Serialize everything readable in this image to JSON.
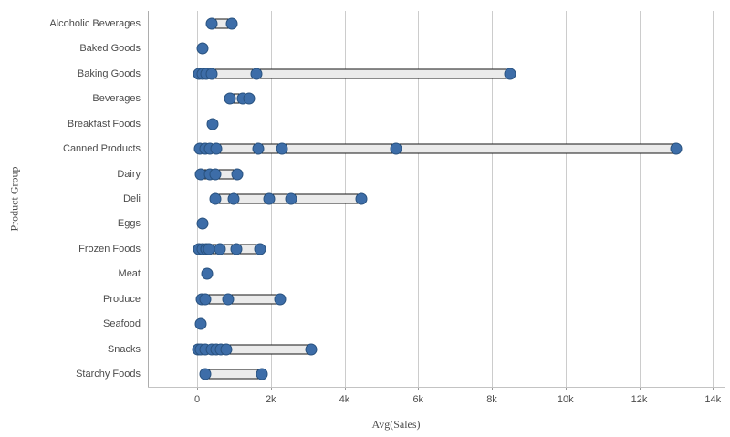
{
  "chart_data": {
    "type": "scatter",
    "subtype": "distribution-plot",
    "title": "",
    "xlabel": "Avg(Sales)",
    "ylabel": "Product Group",
    "xlim": [
      0,
      14000
    ],
    "grid": true,
    "x_axis": {
      "ticks": [
        {
          "label": "0",
          "value": 0
        },
        {
          "label": "2k",
          "value": 2000
        },
        {
          "label": "4k",
          "value": 4000
        },
        {
          "label": "6k",
          "value": 6000
        },
        {
          "label": "8k",
          "value": 8000
        },
        {
          "label": "10k",
          "value": 10000
        },
        {
          "label": "12k",
          "value": 12000
        },
        {
          "label": "14k",
          "value": 14000
        }
      ]
    },
    "series": [
      {
        "category": "Alcoholic Beverages",
        "points": [
          400,
          950
        ]
      },
      {
        "category": "Baked Goods",
        "points": [
          150
        ]
      },
      {
        "category": "Baking Goods",
        "points": [
          50,
          150,
          250,
          400,
          1600,
          8500
        ]
      },
      {
        "category": "Beverages",
        "points": [
          900,
          1250,
          1400
        ]
      },
      {
        "category": "Breakfast Foods",
        "points": [
          430
        ]
      },
      {
        "category": "Canned Products",
        "points": [
          80,
          220,
          350,
          510,
          1650,
          2300,
          5400,
          13000
        ]
      },
      {
        "category": "Dairy",
        "points": [
          100,
          350,
          500,
          1100
        ]
      },
      {
        "category": "Deli",
        "points": [
          500,
          1000,
          1950,
          2550,
          4450
        ]
      },
      {
        "category": "Eggs",
        "points": [
          150
        ]
      },
      {
        "category": "Frozen Foods",
        "points": [
          50,
          150,
          250,
          320,
          620,
          1070,
          1700
        ]
      },
      {
        "category": "Meat",
        "points": [
          280
        ]
      },
      {
        "category": "Produce",
        "points": [
          120,
          230,
          850,
          2250
        ]
      },
      {
        "category": "Seafood",
        "points": [
          100
        ]
      },
      {
        "category": "Snacks",
        "points": [
          20,
          110,
          230,
          390,
          510,
          640,
          800,
          3100
        ]
      },
      {
        "category": "Starchy Foods",
        "points": [
          220,
          1750
        ]
      }
    ],
    "colors": {
      "point_fill": "#3d6da8",
      "point_border": "#29527f",
      "range_bar_fill": "#ebebeb",
      "range_bar_border": "#161616",
      "gridline": "#cccccc",
      "axis_line": "#adadad",
      "text": "#4c4c4c",
      "background": "#ffffff"
    }
  }
}
